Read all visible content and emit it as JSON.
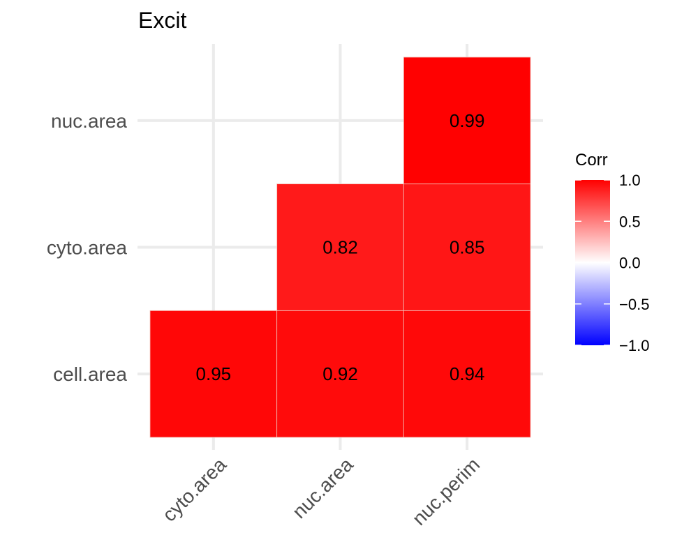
{
  "chart_data": {
    "type": "heatmap",
    "title": "Excit",
    "x_categories": [
      "cyto.area",
      "nuc.area",
      "nuc.perim"
    ],
    "y_categories": [
      "cell.area",
      "cyto.area",
      "nuc.area"
    ],
    "cells": [
      {
        "x": "cyto.area",
        "y": "cell.area",
        "value": 0.95,
        "label": "0.95"
      },
      {
        "x": "nuc.area",
        "y": "cell.area",
        "value": 0.92,
        "label": "0.92"
      },
      {
        "x": "nuc.perim",
        "y": "cell.area",
        "value": 0.94,
        "label": "0.94"
      },
      {
        "x": "nuc.area",
        "y": "cyto.area",
        "value": 0.82,
        "label": "0.82"
      },
      {
        "x": "nuc.perim",
        "y": "cyto.area",
        "value": 0.85,
        "label": "0.85"
      },
      {
        "x": "nuc.perim",
        "y": "nuc.area",
        "value": 0.99,
        "label": "0.99"
      }
    ],
    "legend": {
      "title": "Corr",
      "placement": "right",
      "range": [
        -1,
        1
      ],
      "ticks": [
        "1.0",
        "0.5",
        "0.0",
        "−0.5",
        "−1.0"
      ],
      "tick_values": [
        1,
        0.5,
        0,
        -0.5,
        -1
      ],
      "colors": {
        "low": "#0000ff",
        "mid": "#ffffff",
        "high": "#ff0000"
      }
    },
    "grid": true
  }
}
